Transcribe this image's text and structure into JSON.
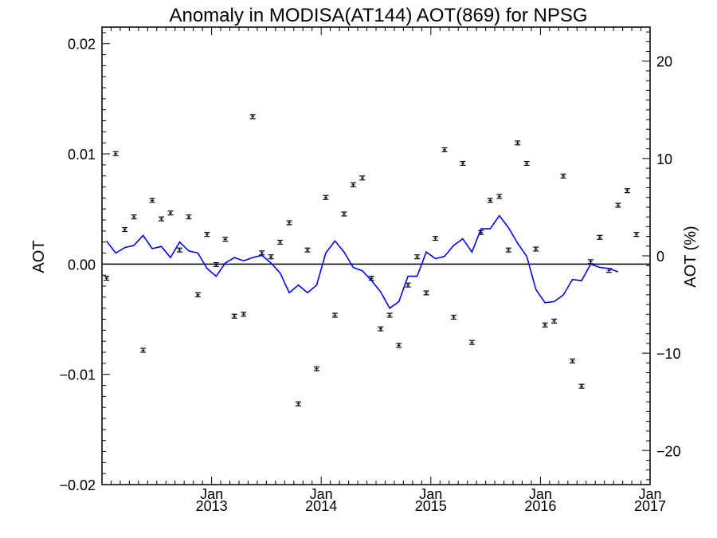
{
  "chart_data": {
    "type": "scatter",
    "title": "Anomaly in MODISA(AT144) AOT(869) for NPSG",
    "ylabel_left": "AOT",
    "ylabel_right": "AOT (%)",
    "ylim_left": [
      -0.02,
      0.0215
    ],
    "ylim_right": [
      -23.5,
      23.5
    ],
    "x_range": [
      "2012-01",
      "2017-01"
    ],
    "y_ticks_left": [
      {
        "value": -0.02,
        "label": "−0.02"
      },
      {
        "value": -0.01,
        "label": "−0.01"
      },
      {
        "value": 0.0,
        "label": "0.00"
      },
      {
        "value": 0.01,
        "label": "0.01"
      },
      {
        "value": 0.02,
        "label": "0.02"
      }
    ],
    "y_ticks_right": [
      {
        "value": -20,
        "label": "−20"
      },
      {
        "value": -10,
        "label": "−10"
      },
      {
        "value": 0,
        "label": "0"
      },
      {
        "value": 10,
        "label": "10"
      },
      {
        "value": 20,
        "label": "20"
      }
    ],
    "x_ticks": [
      {
        "month": 12,
        "label1": "Jan",
        "label2": "2013"
      },
      {
        "month": 24,
        "label1": "Jan",
        "label2": "2014"
      },
      {
        "month": 36,
        "label1": "Jan",
        "label2": "2015"
      },
      {
        "month": 48,
        "label1": "Jan",
        "label2": "2016"
      },
      {
        "month": 60,
        "label1": "Jan",
        "label2": "2017"
      }
    ],
    "series": [
      {
        "kind": "percent_points",
        "axis": "right",
        "error": 0.2,
        "points": [
          [
            0,
            -2.3
          ],
          [
            1,
            10.5
          ],
          [
            2,
            2.7
          ],
          [
            3,
            4.0
          ],
          [
            4,
            -9.7
          ],
          [
            5,
            5.7
          ],
          [
            6,
            3.8
          ],
          [
            7,
            4.4
          ],
          [
            8,
            0.6
          ],
          [
            9,
            4.0
          ],
          [
            10,
            -4.0
          ],
          [
            11,
            2.2
          ],
          [
            12,
            -0.9
          ],
          [
            13,
            1.7
          ],
          [
            14,
            -6.2
          ],
          [
            15,
            -6.0
          ],
          [
            16,
            14.3
          ],
          [
            17,
            0.3
          ],
          [
            18,
            -0.1
          ],
          [
            19,
            1.4
          ],
          [
            20,
            3.4
          ],
          [
            21,
            -15.2
          ],
          [
            22,
            0.6
          ],
          [
            23,
            -11.6
          ],
          [
            24,
            6.0
          ],
          [
            25,
            -6.1
          ],
          [
            26,
            4.3
          ],
          [
            27,
            7.3
          ],
          [
            28,
            8.0
          ],
          [
            29,
            -2.3
          ],
          [
            30,
            -7.5
          ],
          [
            31,
            -6.1
          ],
          [
            32,
            -9.2
          ],
          [
            33,
            -3.0
          ],
          [
            34,
            -0.1
          ],
          [
            35,
            -3.8
          ],
          [
            36,
            1.8
          ],
          [
            37,
            10.9
          ],
          [
            38,
            -6.3
          ],
          [
            39,
            9.5
          ],
          [
            40,
            -8.9
          ],
          [
            41,
            2.4
          ],
          [
            42,
            5.7
          ],
          [
            43,
            6.1
          ],
          [
            44,
            0.6
          ],
          [
            45,
            11.6
          ],
          [
            46,
            9.5
          ],
          [
            47,
            0.7
          ],
          [
            48,
            -7.1
          ],
          [
            49,
            -6.7
          ],
          [
            50,
            8.2
          ],
          [
            51,
            -10.8
          ],
          [
            52,
            -13.4
          ],
          [
            53,
            -0.6
          ],
          [
            54,
            1.9
          ],
          [
            55,
            -1.5
          ],
          [
            56,
            5.2
          ],
          [
            57,
            6.7
          ],
          [
            58,
            2.2
          ]
        ]
      },
      {
        "kind": "aot_line",
        "axis": "left",
        "color": "#0000ff",
        "points": [
          [
            0,
            0.0021
          ],
          [
            1,
            0.001
          ],
          [
            2,
            0.0015
          ],
          [
            3,
            0.0017
          ],
          [
            4,
            0.0026
          ],
          [
            5,
            0.0014
          ],
          [
            6,
            0.0016
          ],
          [
            7,
            0.0006
          ],
          [
            8,
            0.002
          ],
          [
            9,
            0.0012
          ],
          [
            10,
            0.001
          ],
          [
            11,
            -0.0004
          ],
          [
            12,
            -0.0011
          ],
          [
            13,
            0.0001
          ],
          [
            14,
            0.0006
          ],
          [
            15,
            0.0003
          ],
          [
            16,
            0.0006
          ],
          [
            17,
            0.0008
          ],
          [
            18,
            0.0001
          ],
          [
            19,
            -0.0008
          ],
          [
            20,
            -0.0026
          ],
          [
            21,
            -0.0019
          ],
          [
            22,
            -0.0026
          ],
          [
            23,
            -0.0019
          ],
          [
            24,
            0.001
          ],
          [
            25,
            0.0021
          ],
          [
            26,
            0.0011
          ],
          [
            27,
            -0.0003
          ],
          [
            28,
            -0.0006
          ],
          [
            29,
            -0.0015
          ],
          [
            30,
            -0.0025
          ],
          [
            31,
            -0.004
          ],
          [
            32,
            -0.0034
          ],
          [
            33,
            -0.0011
          ],
          [
            34,
            -0.0011
          ],
          [
            35,
            0.0011
          ],
          [
            36,
            0.0005
          ],
          [
            37,
            0.0007
          ],
          [
            38,
            0.0017
          ],
          [
            39,
            0.0023
          ],
          [
            40,
            0.0011
          ],
          [
            41,
            0.0032
          ],
          [
            42,
            0.0032
          ],
          [
            43,
            0.0044
          ],
          [
            44,
            0.0033
          ],
          [
            45,
            0.0019
          ],
          [
            46,
            0.0007
          ],
          [
            47,
            -0.0023
          ],
          [
            48,
            -0.0035
          ],
          [
            49,
            -0.0034
          ],
          [
            50,
            -0.0028
          ],
          [
            51,
            -0.0014
          ],
          [
            52,
            -0.0015
          ],
          [
            53,
            0.0
          ],
          [
            54,
            -0.0003
          ],
          [
            55,
            -0.0004
          ],
          [
            56,
            -0.0007
          ]
        ]
      }
    ]
  }
}
